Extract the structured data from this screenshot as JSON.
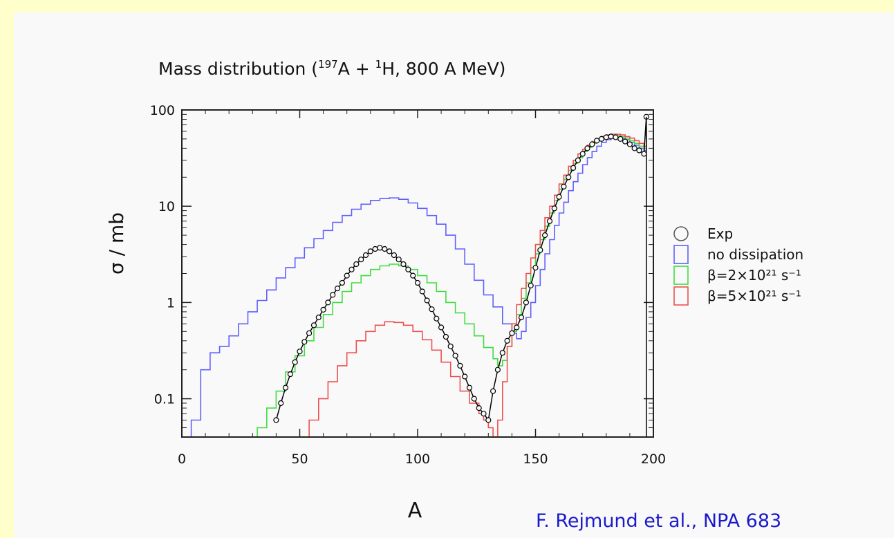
{
  "chart_data": {
    "type": "line",
    "title": {
      "prefix": "Mass distribution (",
      "iso1_mass": "197",
      "iso1_sym": "A",
      "plus": " + ",
      "iso2_mass": "1",
      "iso2_sym": "H",
      "suffix": ", 800 A MeV)"
    },
    "xlabel": "A",
    "ylabel": "σ / mb",
    "xlim": [
      0,
      200
    ],
    "ylim": [
      0.04,
      100
    ],
    "yscale": "log",
    "xticks": [
      0,
      50,
      100,
      150,
      200
    ],
    "yticks": [
      {
        "value": 100,
        "label": "100"
      },
      {
        "value": 10,
        "label": "10"
      },
      {
        "value": 1,
        "label": "1"
      },
      {
        "value": 0.1,
        "label": "0.1"
      }
    ],
    "legend_position": "right",
    "series": [
      {
        "name": "Exp",
        "color": "#000000",
        "marker": "open-circle",
        "x": [
          40,
          42,
          44,
          46,
          48,
          50,
          52,
          54,
          56,
          58,
          60,
          62,
          64,
          66,
          68,
          70,
          72,
          74,
          76,
          78,
          80,
          82,
          84,
          86,
          88,
          90,
          92,
          94,
          96,
          98,
          100,
          102,
          104,
          106,
          108,
          110,
          112,
          114,
          116,
          118,
          120,
          122,
          124,
          126,
          128,
          130,
          132,
          134,
          136,
          138,
          140,
          142,
          144,
          146,
          148,
          150,
          152,
          154,
          156,
          158,
          160,
          162,
          164,
          166,
          168,
          170,
          172,
          174,
          176,
          178,
          180,
          182,
          184,
          186,
          188,
          190,
          192,
          194,
          196,
          197
        ],
        "y": [
          0.06,
          0.09,
          0.13,
          0.18,
          0.24,
          0.31,
          0.39,
          0.48,
          0.58,
          0.7,
          0.84,
          1.0,
          1.2,
          1.4,
          1.6,
          1.9,
          2.2,
          2.5,
          2.8,
          3.1,
          3.4,
          3.6,
          3.7,
          3.6,
          3.4,
          3.1,
          2.8,
          2.5,
          2.2,
          1.9,
          1.6,
          1.3,
          1.05,
          0.85,
          0.68,
          0.55,
          0.44,
          0.35,
          0.28,
          0.22,
          0.17,
          0.13,
          0.1,
          0.08,
          0.07,
          0.06,
          0.12,
          0.2,
          0.3,
          0.4,
          0.48,
          0.55,
          0.7,
          1.0,
          1.5,
          2.3,
          3.5,
          5.0,
          7.0,
          9.5,
          12.5,
          16,
          20,
          25,
          30,
          35,
          40,
          44,
          48,
          50,
          52,
          53,
          52,
          50,
          47,
          44,
          40,
          38,
          35,
          85
        ]
      },
      {
        "name": "no dissipation",
        "color": "#6060ff",
        "marker": "none",
        "x": [
          0,
          4,
          8,
          12,
          16,
          20,
          24,
          28,
          32,
          36,
          40,
          44,
          48,
          52,
          56,
          60,
          64,
          68,
          72,
          76,
          80,
          84,
          88,
          92,
          96,
          100,
          104,
          108,
          112,
          116,
          120,
          124,
          128,
          132,
          136,
          140,
          142,
          144,
          146,
          148,
          150,
          152,
          154,
          156,
          158,
          160,
          162,
          164,
          166,
          168,
          170,
          172,
          174,
          176,
          178,
          180,
          182,
          184,
          186,
          188,
          190,
          192,
          194,
          196,
          197
        ],
        "y": [
          0.04,
          0.06,
          0.2,
          0.3,
          0.35,
          0.45,
          0.6,
          0.8,
          1.05,
          1.35,
          1.8,
          2.3,
          2.9,
          3.7,
          4.6,
          5.6,
          6.8,
          8.0,
          9.3,
          10.5,
          11.5,
          12.0,
          12.2,
          11.8,
          10.8,
          9.5,
          8.0,
          6.5,
          5.0,
          3.6,
          2.5,
          1.7,
          1.2,
          0.9,
          0.6,
          0.48,
          0.42,
          0.5,
          0.7,
          1.0,
          1.5,
          2.2,
          3.2,
          4.5,
          6.3,
          8.5,
          11.0,
          14.5,
          18,
          22,
          27,
          32,
          37,
          42,
          46,
          49,
          51,
          52,
          51,
          49,
          46,
          43,
          40,
          38,
          70
        ]
      },
      {
        "name": "β=2×10²¹ s⁻¹",
        "color": "#40dd40",
        "marker": "none",
        "x": [
          28,
          32,
          36,
          40,
          44,
          48,
          52,
          56,
          60,
          64,
          68,
          72,
          76,
          80,
          84,
          88,
          92,
          96,
          100,
          104,
          108,
          112,
          116,
          120,
          124,
          128,
          132,
          134,
          136,
          138,
          140,
          142,
          144,
          146,
          148,
          150,
          152,
          154,
          156,
          158,
          160,
          162,
          164,
          166,
          168,
          170,
          172,
          174,
          176,
          178,
          180,
          182,
          184,
          186,
          188,
          190,
          192,
          194,
          196,
          197
        ],
        "y": [
          0.04,
          0.05,
          0.08,
          0.12,
          0.19,
          0.28,
          0.4,
          0.55,
          0.75,
          1.0,
          1.3,
          1.6,
          1.9,
          2.2,
          2.4,
          2.5,
          2.4,
          2.2,
          1.9,
          1.6,
          1.3,
          1.0,
          0.78,
          0.6,
          0.45,
          0.34,
          0.26,
          0.22,
          0.25,
          0.35,
          0.5,
          0.75,
          1.1,
          1.6,
          2.3,
          3.2,
          4.5,
          6.2,
          8.5,
          11.5,
          15,
          19,
          23.5,
          28,
          32,
          37,
          41,
          45,
          48,
          51,
          53,
          54,
          54,
          53,
          51,
          48,
          45,
          42,
          40,
          75
        ]
      },
      {
        "name": "β=5×10²¹ s⁻¹",
        "color": "#ee5050",
        "marker": "none",
        "x": [
          50,
          54,
          58,
          62,
          66,
          70,
          74,
          78,
          82,
          86,
          90,
          94,
          98,
          102,
          106,
          110,
          114,
          118,
          122,
          126,
          128,
          130,
          132,
          134,
          136,
          138,
          140,
          142,
          144,
          146,
          148,
          150,
          152,
          154,
          156,
          158,
          160,
          162,
          164,
          166,
          168,
          170,
          172,
          174,
          176,
          178,
          180,
          182,
          184,
          186,
          188,
          190,
          192,
          194,
          196,
          197
        ],
        "y": [
          0.04,
          0.06,
          0.1,
          0.15,
          0.22,
          0.3,
          0.4,
          0.5,
          0.58,
          0.63,
          0.62,
          0.58,
          0.5,
          0.41,
          0.32,
          0.24,
          0.17,
          0.12,
          0.09,
          0.07,
          0.06,
          0.05,
          0.04,
          0.06,
          0.15,
          0.35,
          0.6,
          0.95,
          1.4,
          2.0,
          2.9,
          4.0,
          5.6,
          7.6,
          10,
          13,
          17,
          21,
          26,
          30,
          35,
          39,
          43,
          47,
          50,
          53,
          55,
          56,
          56,
          55,
          53,
          51,
          48,
          45,
          42,
          80
        ]
      }
    ]
  },
  "citation": "F. Rejmund et al., NPA 683"
}
